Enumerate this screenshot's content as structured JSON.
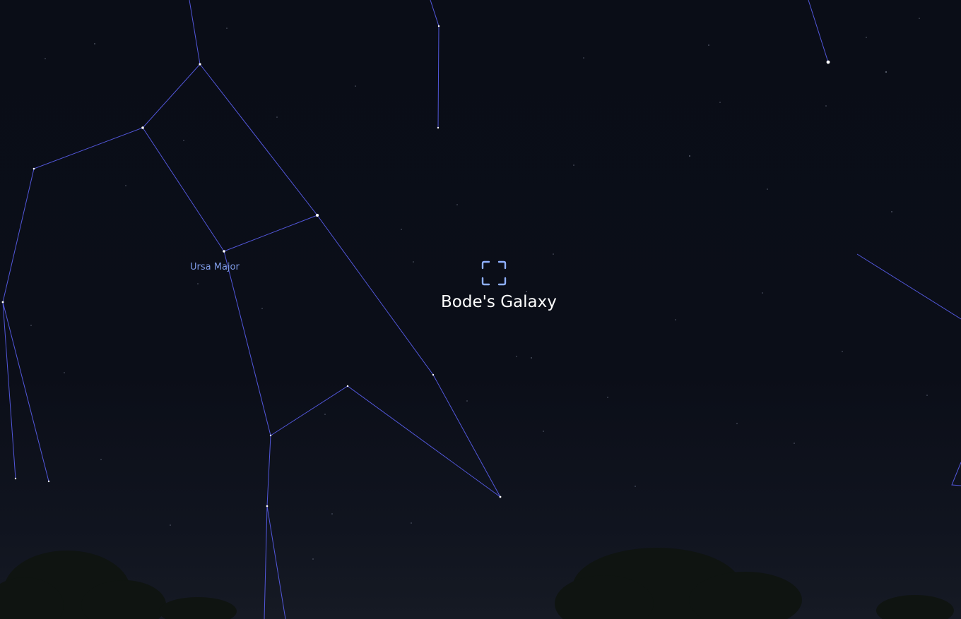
{
  "sky_view": {
    "constellation_label": "Ursa Major",
    "selected_object_label": "Bode's Galaxy",
    "colors": {
      "sky_background": "#0b0e18",
      "constellation_lines": "#5a5ff0",
      "constellation_label": "#7f9be6",
      "target_marker": "#8fb0ff",
      "object_label": "#ffffff",
      "horizon_trees": "#0f1411"
    },
    "icons": {
      "selection_marker": "focus-bracket-icon"
    }
  }
}
